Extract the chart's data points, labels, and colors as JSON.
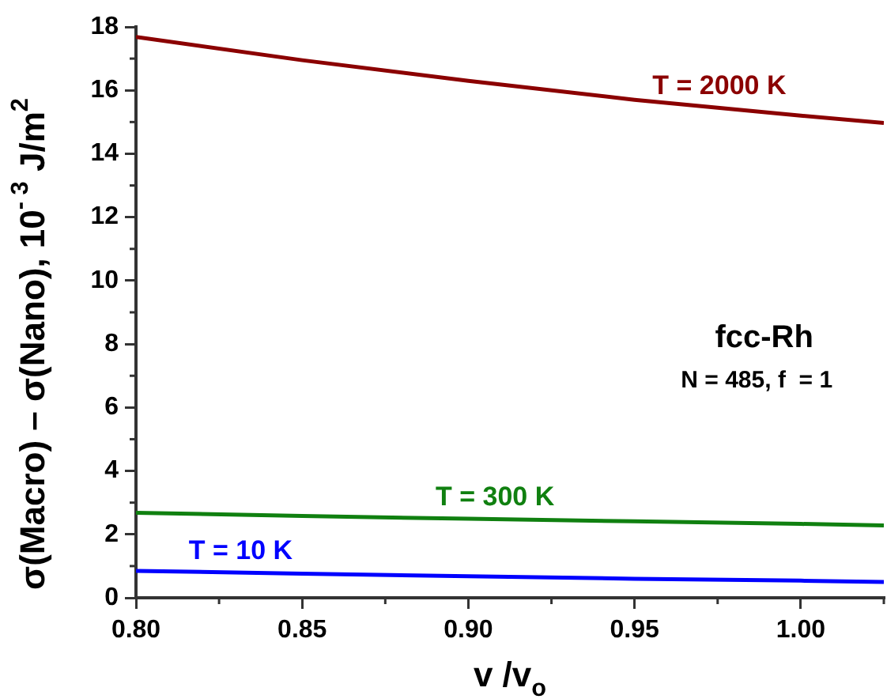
{
  "chart_data": {
    "type": "line",
    "xlabel": "v /v$_{o}$",
    "ylabel": "σ(Macro) – σ(Nano), 10$^{- 3}$ J/m$^{2}$",
    "x": [
      0.8,
      0.85,
      0.9,
      0.95,
      1.0,
      1.025
    ],
    "series": [
      {
        "name": "T = 2000 K",
        "color": "#8b0000",
        "values": [
          17.68,
          16.95,
          16.3,
          15.7,
          15.2,
          14.97
        ]
      },
      {
        "name": "T = 300 K",
        "color": "#108010",
        "values": [
          2.68,
          2.58,
          2.49,
          2.41,
          2.33,
          2.28
        ]
      },
      {
        "name": "T = 10 K",
        "color": "#0000ff",
        "values": [
          0.85,
          0.76,
          0.68,
          0.6,
          0.54,
          0.5
        ]
      }
    ],
    "xlim": [
      0.8,
      1.025
    ],
    "xticks": [
      {
        "value": 0.8,
        "label": "0.80"
      },
      {
        "value": 0.85,
        "label": "0.85"
      },
      {
        "value": 0.9,
        "label": "0.90"
      },
      {
        "value": 0.95,
        "label": "0.95"
      },
      {
        "value": 1.0,
        "label": "1.00"
      }
    ],
    "ylim": [
      0,
      18
    ],
    "yticks": [
      0,
      2,
      4,
      6,
      8,
      10,
      12,
      14,
      16,
      18
    ],
    "annotations": [
      "fcc-Rh",
      "N = 485, f  = 1"
    ],
    "grid": false,
    "legend": false,
    "marker": "none",
    "line_style": "solid"
  }
}
